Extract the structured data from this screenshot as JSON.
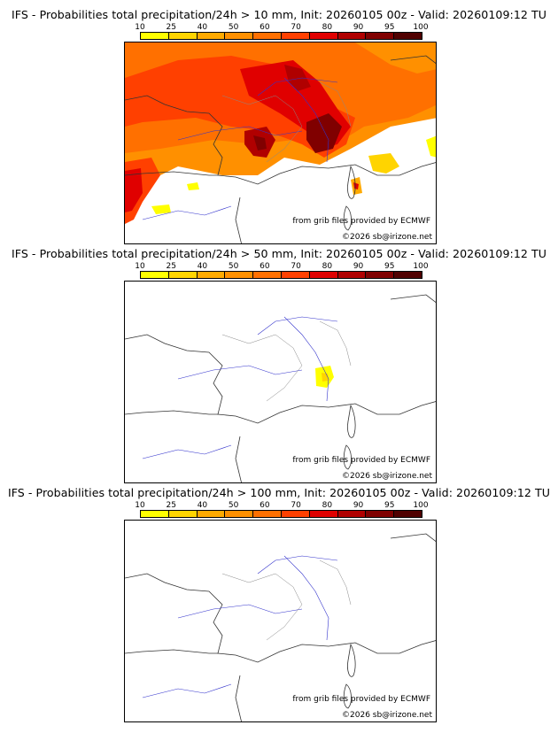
{
  "colorbar": {
    "tick_labels": [
      "10",
      "25",
      "40",
      "50",
      "60",
      "70",
      "80",
      "90",
      "95",
      "100"
    ],
    "colors": [
      "#ffff00",
      "#ffd400",
      "#ffaa00",
      "#ff9000",
      "#ff7000",
      "#ff4000",
      "#e00000",
      "#b00000",
      "#800000",
      "#500000"
    ]
  },
  "credit_source": "from grib files provided by ECMWF",
  "credit_copyright": "©2026 sb@irizone.net",
  "panels": [
    {
      "id": "p10",
      "title": "IFS - Probabilities total precipitation/24h > 10 mm, Init: 20260105 00z - Valid: 20260109:12 TU"
    },
    {
      "id": "p50",
      "title": "IFS - Probabilities total precipitation/24h > 50 mm, Init: 20260105 00z - Valid: 20260109:12 TU"
    },
    {
      "id": "p100",
      "title": "IFS - Probabilities total precipitation/24h > 100 mm, Init: 20260105 00z - Valid: 20260109:12 TU"
    }
  ]
}
